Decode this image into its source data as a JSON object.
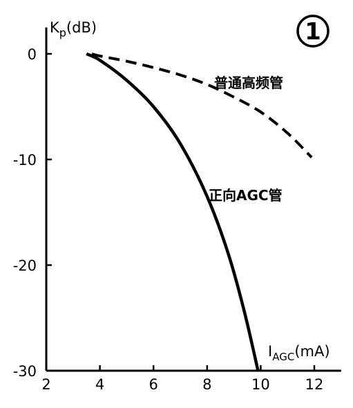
{
  "chart_data": {
    "type": "line",
    "badge": "1",
    "ylabel": "Kp(dB)",
    "ylabel_main": "K",
    "ylabel_sub": "p",
    "ylabel_unit": "(dB)",
    "xlabel": "IAGC(mA)",
    "xlabel_main": "I",
    "xlabel_sub": "AGC",
    "xlabel_unit": "(mA)",
    "xlim": [
      2,
      13
    ],
    "ylim": [
      -30,
      2.5
    ],
    "xticks": [
      "2",
      "4",
      "6",
      "8",
      "10",
      "12"
    ],
    "yticks": [
      "0",
      "-10",
      "-20",
      "-30"
    ],
    "grid": false,
    "series": [
      {
        "name": "普通高频管",
        "style": "dashed",
        "x": [
          3.7,
          4.0,
          5.0,
          6.0,
          7.0,
          8.0,
          9.0,
          10.0,
          11.0,
          11.9
        ],
        "y": [
          0.0,
          -0.2,
          -0.7,
          -1.3,
          -2.0,
          -2.9,
          -4.1,
          -5.5,
          -7.5,
          -9.8
        ]
      },
      {
        "name": "正向AGC管",
        "style": "solid",
        "x": [
          3.5,
          4.0,
          5.0,
          6.0,
          7.0,
          8.0,
          8.8,
          9.4,
          9.9
        ],
        "y": [
          0.0,
          -0.6,
          -2.5,
          -5.0,
          -8.5,
          -13.5,
          -19.0,
          -24.5,
          -30.0
        ]
      }
    ],
    "annotations": [
      "普通高频管",
      "正向AGC管"
    ]
  }
}
